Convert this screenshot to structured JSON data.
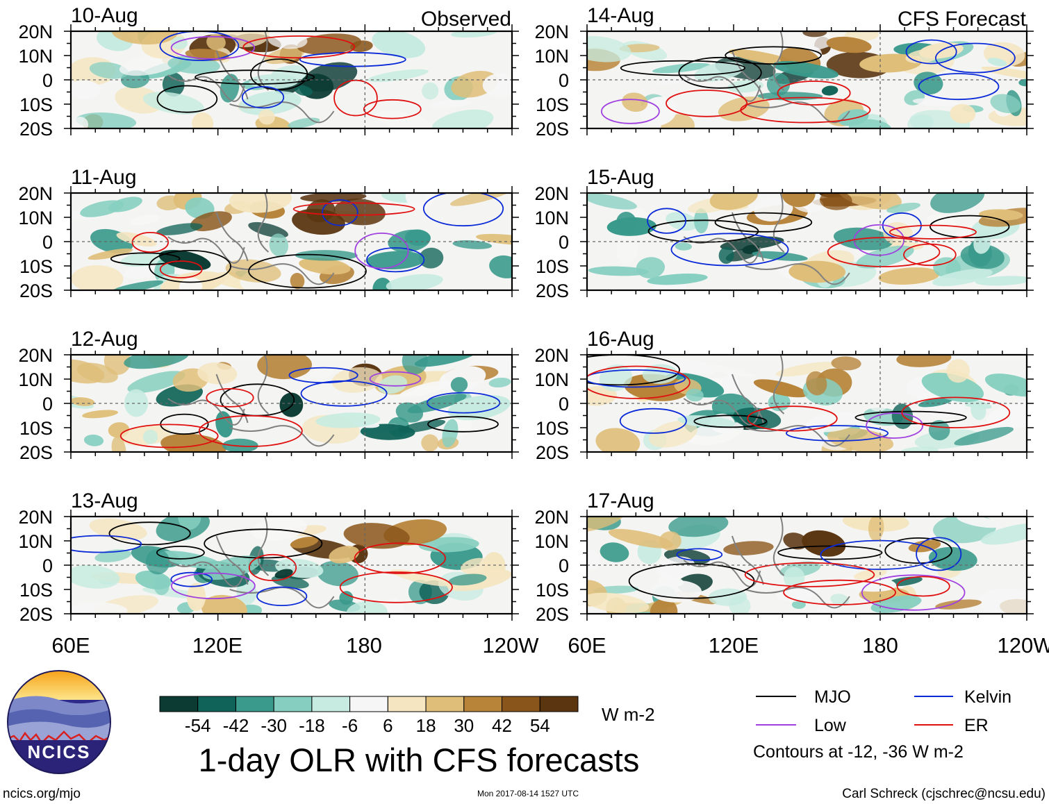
{
  "chart_data": {
    "type": "heatmap",
    "title": "1-day OLR with CFS forecasts",
    "observed_label": "Observed",
    "forecast_label": "CFS Forecast",
    "observed_panels": [
      "10-Aug",
      "11-Aug",
      "12-Aug",
      "13-Aug"
    ],
    "forecast_panels": [
      "14-Aug",
      "15-Aug",
      "16-Aug",
      "17-Aug"
    ],
    "lon_ticks": [
      "60E",
      "120E",
      "180",
      "120W"
    ],
    "lat_ticks": [
      "20N",
      "10N",
      "0",
      "10S",
      "20S"
    ],
    "lon_range": [
      60,
      240
    ],
    "lat_range": [
      -20,
      20
    ],
    "colorbar": {
      "ticks": [
        "-54",
        "-42",
        "-30",
        "-18",
        "-6",
        "6",
        "18",
        "30",
        "42",
        "54"
      ],
      "units": "W m-2",
      "colors": [
        "#0b3b33",
        "#0f6358",
        "#3a9a8c",
        "#86cfc0",
        "#c7ebe1",
        "#f6f6f6",
        "#f5e6c1",
        "#dfbe79",
        "#b7843a",
        "#8a551a",
        "#5a3510"
      ]
    },
    "legend": [
      {
        "name": "MJO",
        "color": "#000000"
      },
      {
        "name": "Kelvin",
        "color": "#0a2ad8"
      },
      {
        "name": "Low",
        "color": "#a040e0"
      },
      {
        "name": "ER",
        "color": "#e01010"
      }
    ],
    "contour_note": "Contours at -12, -36 W m-2"
  },
  "footer": {
    "logo_text": "NCICS",
    "site": "ncics.org/mjo",
    "timestamp": "Mon 2017-08-14 1527 UTC",
    "credit": "Carl Schreck (cjschrec@ncsu.edu)"
  }
}
